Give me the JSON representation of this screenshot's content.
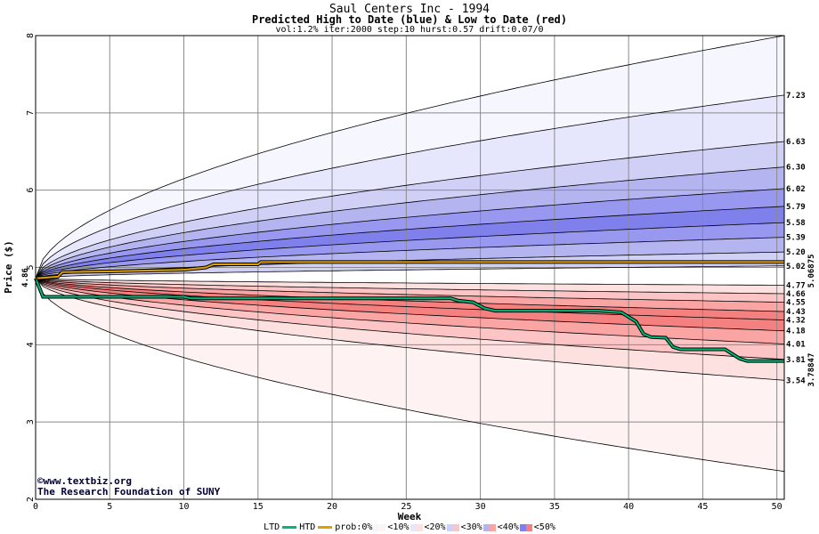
{
  "chart_data": {
    "type": "area",
    "title": "Saul Centers Inc - 1994",
    "subtitle": "Predicted High to Date (blue) &  Low to Date (red)",
    "params": "vol:1.2% iter:2000 step:10 hurst:0.57 drift:0.07/0",
    "xlabel": "Week",
    "ylabel": "Price ($)",
    "xlim": [
      0,
      50.5
    ],
    "ylim": [
      2,
      8
    ],
    "xticks": [
      "0",
      "5",
      "10",
      "15",
      "20",
      "25",
      "30",
      "35",
      "40",
      "45",
      "50"
    ],
    "yticks": [
      "2",
      "3",
      "4",
      "5",
      "6",
      "7",
      "8"
    ],
    "start_price": 4.86,
    "start_label": "4.86",
    "upper_levels": [
      {
        "label": "8.00",
        "end": 8.0,
        "shown": false
      },
      {
        "label": "7.23",
        "end": 7.23
      },
      {
        "label": "6.63",
        "end": 6.63
      },
      {
        "label": "6.30",
        "end": 6.3
      },
      {
        "label": "6.02",
        "end": 6.02
      },
      {
        "label": "5.79",
        "end": 5.79
      },
      {
        "label": "5.58",
        "end": 5.58
      },
      {
        "label": "5.39",
        "end": 5.39
      },
      {
        "label": "5.20",
        "end": 5.2
      },
      {
        "label": "5.02",
        "end": 5.02
      }
    ],
    "lower_levels": [
      {
        "label": "4.77",
        "end": 4.77
      },
      {
        "label": "4.66",
        "end": 4.66
      },
      {
        "label": "4.55",
        "end": 4.55
      },
      {
        "label": "4.43",
        "end": 4.43
      },
      {
        "label": "4.32",
        "end": 4.32
      },
      {
        "label": "4.18",
        "end": 4.18
      },
      {
        "label": "4.01",
        "end": 4.01
      },
      {
        "label": "3.81",
        "end": 3.81
      },
      {
        "label": "3.54",
        "end": 3.54
      },
      {
        "label": "2.36",
        "end": 2.36,
        "shown": false
      }
    ],
    "htd_series": {
      "name": "HTD",
      "color": "#e0a000",
      "end_label": "5.06875",
      "points": [
        [
          0,
          4.86
        ],
        [
          1.5,
          4.88
        ],
        [
          1.8,
          4.94
        ],
        [
          5.5,
          4.95
        ],
        [
          10,
          4.97
        ],
        [
          11.5,
          5.0
        ],
        [
          12,
          5.04
        ],
        [
          15,
          5.04
        ],
        [
          15.2,
          5.07
        ],
        [
          50.5,
          5.07
        ]
      ]
    },
    "ltd_series": {
      "name": "LTD",
      "color": "#00b878",
      "end_label": "3.78847",
      "points": [
        [
          0,
          4.86
        ],
        [
          0.5,
          4.62
        ],
        [
          10,
          4.62
        ],
        [
          10.5,
          4.6
        ],
        [
          28,
          4.6
        ],
        [
          28.5,
          4.57
        ],
        [
          29.5,
          4.55
        ],
        [
          30.3,
          4.47
        ],
        [
          31,
          4.44
        ],
        [
          38,
          4.44
        ],
        [
          39.5,
          4.42
        ],
        [
          40,
          4.36
        ],
        [
          40.5,
          4.3
        ],
        [
          41,
          4.14
        ],
        [
          41.5,
          4.1
        ],
        [
          42.5,
          4.09
        ],
        [
          43,
          3.97
        ],
        [
          43.5,
          3.94
        ],
        [
          46.5,
          3.94
        ],
        [
          47.5,
          3.82
        ],
        [
          48,
          3.79
        ],
        [
          50.5,
          3.79
        ]
      ]
    },
    "grid": true
  },
  "credit": {
    "site": "©www.textbiz.org",
    "org": "The Research Foundation of SUNY"
  },
  "legend": {
    "ltd": "LTD",
    "htd": "HTD",
    "prob": "prob:0%",
    "buckets": [
      "<10%",
      "<20%",
      "<30%",
      "<40%",
      "<50%"
    ],
    "colors": {
      "htd": "#e0a000",
      "ltd": "#00b878",
      "upper": [
        "#f6f6ff",
        "#e6e6fc",
        "#d0d0f6",
        "#b4b4f0",
        "#8080ec"
      ],
      "lower": [
        "#fff2f2",
        "#fde0e0",
        "#fcc4c4",
        "#faa4a4",
        "#f58080"
      ]
    }
  }
}
